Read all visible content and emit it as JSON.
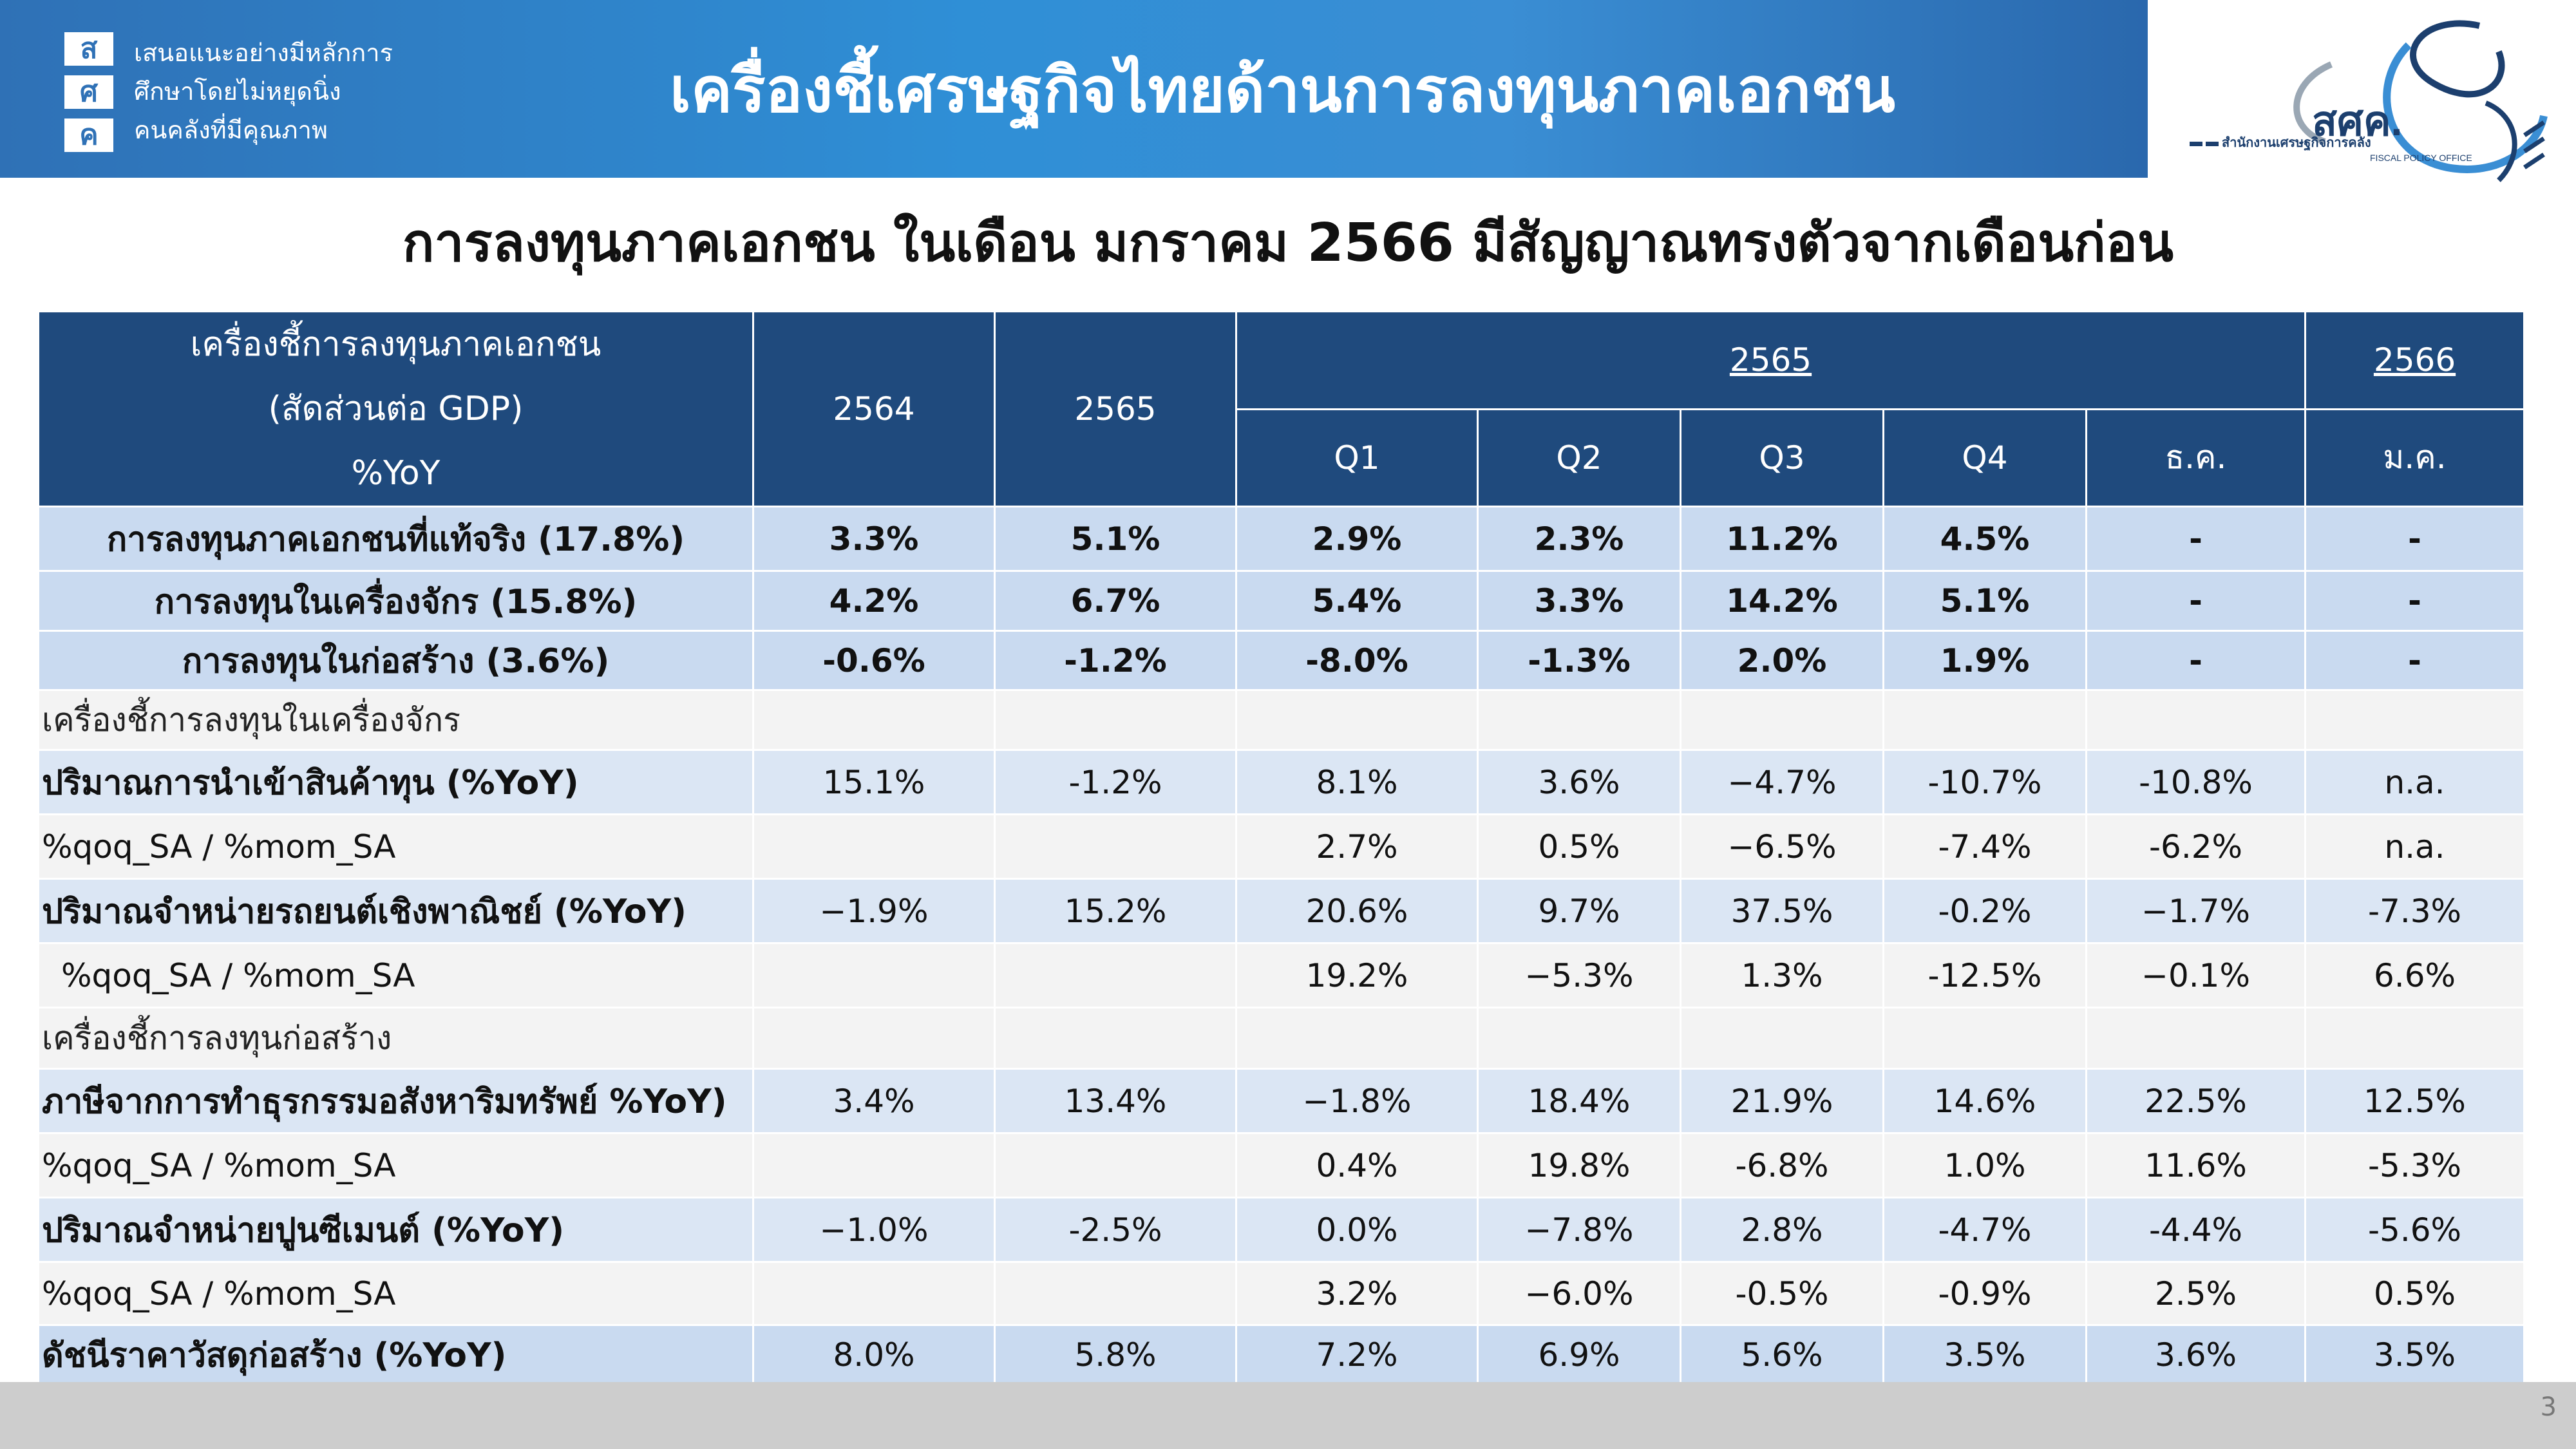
{
  "header": {
    "logo_letters": [
      "ส",
      "ศ",
      "ค"
    ],
    "logo_lines": [
      "เสนอแนะอย่างมีหลักการ",
      "ศึกษาโดยไม่หยุดนิ่ง",
      "คนคลังที่มีคุณภาพ"
    ],
    "title": "เครื่องชี้เศรษฐกิจไทยด้านการลงทุนภาคเอกชน",
    "brand_short": "สศค.",
    "brand_full": "สำนักงานเศรษฐกิจการคลัง",
    "brand_en": "FISCAL POLICY OFFICE",
    "band_color": "#2f7fc8"
  },
  "subtitle": "การลงทุนภาคเอกชน ในเดือน มกราคม 2566 มีสัญญาณทรงตัวจากเดือนก่อน",
  "table": {
    "header": {
      "label_lines": [
        "เครื่องชี้การลงทุนภาคเอกชน",
        "(สัดส่วนต่อ GDP)",
        "%YoY"
      ],
      "col_2564": "2564",
      "col_2565": "2565",
      "group_2565": "2565",
      "group_2566": "2566",
      "sub_cols": [
        "Q1",
        "Q2",
        "Q3",
        "Q4",
        "ธ.ค.",
        "ม.ค."
      ]
    },
    "rows": [
      {
        "label": "การลงทุนภาคเอกชนที่แท้จริง (17.8%)",
        "values": [
          "3.3%",
          "5.1%",
          "2.9%",
          "2.3%",
          "11.2%",
          "4.5%",
          "-",
          "-"
        ]
      },
      {
        "label": "การลงทุนในเครื่องจักร (15.8%)",
        "values": [
          "4.2%",
          "6.7%",
          "5.4%",
          "3.3%",
          "14.2%",
          "5.1%",
          "-",
          "-"
        ]
      },
      {
        "label": "การลงทุนในก่อสร้าง (3.6%)",
        "values": [
          "-0.6%",
          "-1.2%",
          "-8.0%",
          "-1.3%",
          "2.0%",
          "1.9%",
          "-",
          "-"
        ]
      },
      {
        "label": "เครื่องชี้การลงทุนในเครื่องจักร",
        "values": [
          "",
          "",
          "",
          "",
          "",
          "",
          "",
          ""
        ]
      },
      {
        "label": "ปริมาณการนำเข้าสินค้าทุน (%YoY)",
        "values": [
          "15.1%",
          "-1.2%",
          "8.1%",
          "3.6%",
          "−4.7%",
          "-10.7%",
          "-10.8%",
          "n.a."
        ]
      },
      {
        "label": "%qoq_SA / %mom_SA",
        "values": [
          "",
          "",
          "2.7%",
          "0.5%",
          "−6.5%",
          "-7.4%",
          "-6.2%",
          "n.a."
        ]
      },
      {
        "label": "ปริมาณจำหน่ายรถยนต์เชิงพาณิชย์ (%YoY)",
        "values": [
          "−1.9%",
          "15.2%",
          "20.6%",
          "9.7%",
          "37.5%",
          "-0.2%",
          "−1.7%",
          "-7.3%"
        ]
      },
      {
        "label": "%qoq_SA / %mom_SA",
        "values": [
          "",
          "",
          "19.2%",
          "−5.3%",
          "1.3%",
          "-12.5%",
          "−0.1%",
          "6.6%"
        ]
      },
      {
        "label": "เครื่องชี้การลงทุนก่อสร้าง",
        "values": [
          "",
          "",
          "",
          "",
          "",
          "",
          "",
          ""
        ]
      },
      {
        "label": "ภาษีจากการทำธุรกรรมอสังหาริมทรัพย์ %YoY)",
        "values": [
          "3.4%",
          "13.4%",
          "−1.8%",
          "18.4%",
          "21.9%",
          "14.6%",
          "22.5%",
          "12.5%"
        ]
      },
      {
        "label": "%qoq_SA / %mom_SA",
        "values": [
          "",
          "",
          "0.4%",
          "19.8%",
          "-6.8%",
          "1.0%",
          "11.6%",
          "-5.3%"
        ]
      },
      {
        "label": "ปริมาณจำหน่ายปูนซีเมนต์ (%YoY)",
        "values": [
          "−1.0%",
          "-2.5%",
          "0.0%",
          "−7.8%",
          "2.8%",
          "-4.7%",
          "-4.4%",
          "-5.6%"
        ]
      },
      {
        "label": "%qoq_SA / %mom_SA",
        "values": [
          "",
          "",
          "3.2%",
          "−6.0%",
          "-0.5%",
          "-0.9%",
          "2.5%",
          "0.5%"
        ]
      },
      {
        "label": "ดัชนีราคาวัสดุก่อสร้าง (%YoY)",
        "values": [
          "8.0%",
          "5.8%",
          "7.2%",
          "6.9%",
          "5.6%",
          "3.5%",
          "3.6%",
          "3.5%"
        ]
      }
    ]
  },
  "footer": {
    "page_number": "3"
  }
}
